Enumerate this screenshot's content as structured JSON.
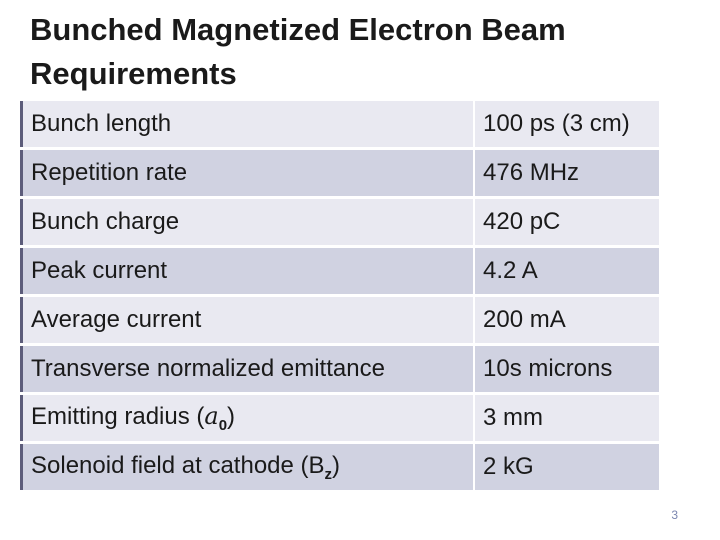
{
  "title": "Bunched Magnetized Electron Beam Requirements",
  "table": {
    "rows": [
      [
        "Bunch length",
        "100 ps (3 cm)"
      ],
      [
        "Repetition rate",
        "476 MHz"
      ],
      [
        "Bunch charge",
        "420 pC"
      ],
      [
        "Peak current",
        "4.2 A"
      ],
      [
        "Average current",
        "200 mA"
      ],
      [
        "Transverse normalized emittance",
        "10s microns"
      ],
      [
        {
          "text": "Emitting radius (",
          "var": "a",
          "sub": "0",
          "tail": ")"
        },
        "3 mm"
      ],
      [
        {
          "text": "Solenoid field at cathode (B",
          "sub": "z",
          "tail": ")"
        },
        "2 kG"
      ]
    ]
  },
  "page_number": "3"
}
